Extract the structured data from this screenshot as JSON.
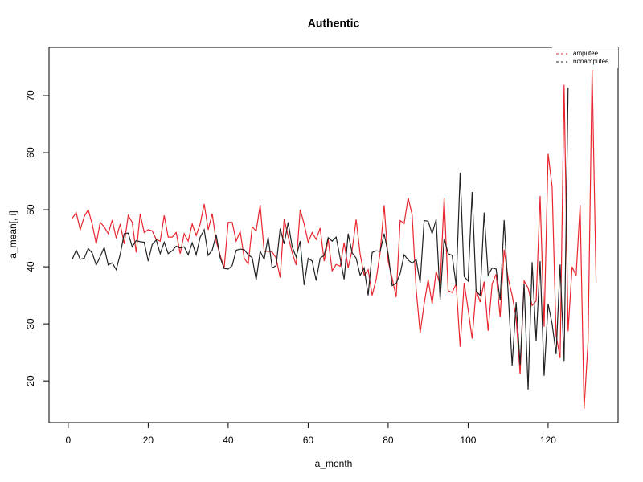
{
  "chart_data": {
    "type": "line",
    "title": "Authentic",
    "x_label": "a_month",
    "y_label": "a_mean[, i]",
    "x": [
      1,
      2,
      3,
      4,
      5,
      6,
      7,
      8,
      9,
      10,
      11,
      12,
      13,
      14,
      15,
      16,
      17,
      18,
      19,
      20,
      21,
      22,
      23,
      24,
      25,
      26,
      27,
      28,
      29,
      30,
      31,
      32,
      33,
      34,
      35,
      36,
      37,
      38,
      39,
      40,
      41,
      42,
      43,
      44,
      45,
      46,
      47,
      48,
      49,
      50,
      51,
      52,
      53,
      54,
      55,
      56,
      57,
      58,
      59,
      60,
      61,
      62,
      63,
      64,
      65,
      66,
      67,
      68,
      69,
      70,
      71,
      72,
      73,
      74,
      75,
      76,
      77,
      78,
      79,
      80,
      81,
      82,
      83,
      84,
      85,
      86,
      87,
      88,
      89,
      90,
      91,
      92,
      93,
      94,
      95,
      96,
      97,
      98,
      99,
      100,
      101,
      102,
      103,
      104,
      105,
      106,
      107,
      108,
      109,
      110,
      111,
      112,
      113,
      114,
      115,
      116,
      117,
      118,
      119,
      120,
      121,
      122,
      123,
      124,
      125,
      126,
      127,
      128,
      129,
      130,
      131,
      132
    ],
    "series": [
      {
        "name": "amputee",
        "color": "#e8262e",
        "values": [
          48.5,
          49.5,
          46.5,
          48.8,
          50,
          47.5,
          44,
          47.8,
          47,
          45.8,
          48.2,
          45,
          47.5,
          44,
          49,
          47.8,
          42.5,
          49.3,
          46,
          46.5,
          46.3,
          44.8,
          44.5,
          49,
          45.2,
          45.2,
          46,
          42.3,
          45.8,
          44.5,
          47.5,
          45.5,
          47.5,
          51,
          46.5,
          49.3,
          44.5,
          42,
          39.8,
          47.8,
          47.8,
          44.5,
          46.2,
          41.5,
          40.5,
          47,
          46.3,
          50.8,
          42.7,
          42.7,
          42.6,
          41.5,
          38.1,
          48.4,
          45.3,
          42.5,
          40.3,
          50,
          47.5,
          44.3,
          46,
          44.8,
          46.8,
          41,
          44.8,
          39.3,
          40.4,
          40.1,
          44.2,
          39.8,
          43,
          48.3,
          42.2,
          38.5,
          39.5,
          35,
          37.8,
          42.5,
          50.8,
          41,
          38,
          34.7,
          48.1,
          47.6,
          52.1,
          49.1,
          36,
          28.4,
          33.5,
          37.8,
          33.5,
          39.2,
          36.8,
          52.1,
          35.8,
          35.5,
          37,
          26,
          37.2,
          32.5,
          27.4,
          36,
          33.8,
          37.4,
          28.8,
          37,
          38.7,
          31.2,
          43,
          38,
          35,
          31,
          21.2,
          37.5,
          36.3,
          33.2,
          34,
          52.4,
          29.5,
          59.8,
          54,
          28,
          24,
          71.9,
          28.7,
          40,
          38.4,
          50.8,
          15.1,
          27,
          74.5,
          37.2
        ]
      },
      {
        "name": "nonamputee",
        "color": "#222222",
        "values": [
          41.3,
          42.9,
          41.3,
          41.5,
          43.2,
          42.4,
          40.3,
          41.8,
          43.4,
          40.3,
          40.7,
          39.5,
          42.2,
          45.8,
          45.9,
          43.5,
          44.6,
          44.4,
          44.3,
          41,
          43.9,
          44.7,
          42.3,
          44.3,
          42.3,
          42.8,
          43.6,
          43.3,
          43.5,
          42.1,
          44.2,
          42.1,
          45.2,
          46.5,
          42,
          42.9,
          45.6,
          41.6,
          39.7,
          39.6,
          40.2,
          42.9,
          43.1,
          43,
          42.1,
          41.6,
          37.7,
          42.7,
          41.3,
          45.2,
          39.8,
          40.2,
          46.7,
          44,
          47.8,
          43.5,
          41.7,
          44.5,
          36.8,
          41.5,
          41,
          37.6,
          41.5,
          42,
          45.1,
          44.5,
          45.2,
          41.5,
          37.8,
          45.8,
          42.4,
          41.5,
          38.5,
          39.8,
          35,
          42.5,
          42.8,
          42.7,
          45.8,
          42.3,
          36.7,
          37.1,
          38.8,
          42.1,
          41.2,
          40.6,
          41.3,
          37.2,
          48.1,
          48,
          45.8,
          48.3,
          34.2,
          45,
          42.3,
          42,
          36.7,
          56.5,
          38.3,
          37.5,
          53.1,
          35.7,
          35,
          49.5,
          38.5,
          39.8,
          39.6,
          34.1,
          48.2,
          35.5,
          22.7,
          33.8,
          22.8,
          37,
          18.5,
          40.8,
          27,
          41,
          20.9,
          33.5,
          30,
          24.7,
          40.4,
          23.5,
          71.4,
          null,
          null,
          null,
          null,
          null,
          null,
          null
        ]
      }
    ],
    "xlim": [
      -4.8,
      137.5
    ],
    "ylim": [
      12.7,
      78.45
    ],
    "xticks": [
      0,
      20,
      40,
      60,
      80,
      100,
      120
    ],
    "yticks": [
      20,
      30,
      40,
      50,
      60,
      70
    ],
    "legend_position": "top-right"
  }
}
